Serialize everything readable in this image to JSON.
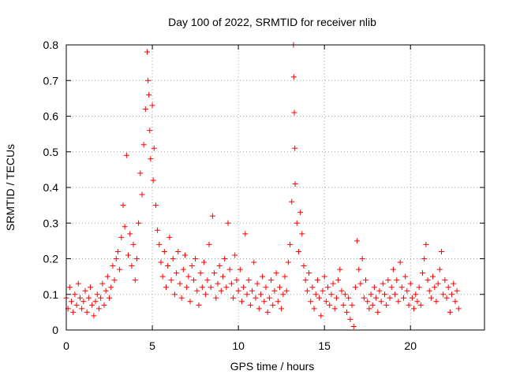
{
  "chart_data": {
    "type": "scatter",
    "title": "Day 100 of 2022, SRMTID for receiver nlib",
    "xlabel": "GPS time / hours",
    "ylabel": "SRMTID / TECUs",
    "xlim": [
      0,
      24.3
    ],
    "ylim": [
      0,
      0.8
    ],
    "xticks": [
      0,
      5,
      10,
      15,
      20
    ],
    "yticks": [
      0,
      0.1,
      0.2,
      0.3,
      0.4,
      0.5,
      0.6,
      0.7,
      0.8
    ],
    "xtick_labels": [
      "0",
      "5",
      "10",
      "15",
      "20"
    ],
    "ytick_labels": [
      "0",
      "0.1",
      "0.2",
      "0.3",
      "0.4",
      "0.5",
      "0.6",
      "0.7",
      "0.8"
    ],
    "grid": true,
    "marker": "+",
    "color": "#ff0000",
    "series": [
      {
        "name": "SRMTID",
        "points": [
          [
            0.0,
            0.09
          ],
          [
            0.1,
            0.06
          ],
          [
            0.2,
            0.12
          ],
          [
            0.3,
            0.08
          ],
          [
            0.4,
            0.05
          ],
          [
            0.5,
            0.1
          ],
          [
            0.6,
            0.07
          ],
          [
            0.7,
            0.13
          ],
          [
            0.8,
            0.09
          ],
          [
            0.9,
            0.06
          ],
          [
            1.0,
            0.08
          ],
          [
            1.1,
            0.11
          ],
          [
            1.2,
            0.05
          ],
          [
            1.3,
            0.09
          ],
          [
            1.4,
            0.12
          ],
          [
            1.5,
            0.07
          ],
          [
            1.6,
            0.04
          ],
          [
            1.7,
            0.08
          ],
          [
            1.8,
            0.1
          ],
          [
            1.9,
            0.06
          ],
          [
            2.0,
            0.09
          ],
          [
            2.1,
            0.13
          ],
          [
            2.2,
            0.07
          ],
          [
            2.3,
            0.11
          ],
          [
            2.4,
            0.15
          ],
          [
            2.5,
            0.09
          ],
          [
            2.6,
            0.12
          ],
          [
            2.7,
            0.18
          ],
          [
            2.8,
            0.14
          ],
          [
            2.9,
            0.2
          ],
          [
            3.0,
            0.22
          ],
          [
            3.1,
            0.17
          ],
          [
            3.2,
            0.26
          ],
          [
            3.3,
            0.35
          ],
          [
            3.4,
            0.29
          ],
          [
            3.5,
            0.49
          ],
          [
            3.6,
            0.21
          ],
          [
            3.7,
            0.27
          ],
          [
            3.8,
            0.18
          ],
          [
            3.9,
            0.24
          ],
          [
            4.0,
            0.14
          ],
          [
            4.1,
            0.2
          ],
          [
            4.2,
            0.3
          ],
          [
            4.3,
            0.44
          ],
          [
            4.4,
            0.38
          ],
          [
            4.5,
            0.52
          ],
          [
            4.6,
            0.62
          ],
          [
            4.7,
            0.78
          ],
          [
            4.75,
            0.7
          ],
          [
            4.8,
            0.66
          ],
          [
            4.85,
            0.56
          ],
          [
            4.9,
            0.48
          ],
          [
            5.0,
            0.63
          ],
          [
            5.05,
            0.42
          ],
          [
            5.1,
            0.51
          ],
          [
            5.2,
            0.35
          ],
          [
            5.3,
            0.28
          ],
          [
            5.4,
            0.24
          ],
          [
            5.5,
            0.19
          ],
          [
            5.6,
            0.15
          ],
          [
            5.7,
            0.22
          ],
          [
            5.8,
            0.12
          ],
          [
            5.9,
            0.18
          ],
          [
            6.0,
            0.26
          ],
          [
            6.1,
            0.14
          ],
          [
            6.2,
            0.2
          ],
          [
            6.3,
            0.1
          ],
          [
            6.4,
            0.16
          ],
          [
            6.5,
            0.22
          ],
          [
            6.6,
            0.13
          ],
          [
            6.7,
            0.09
          ],
          [
            6.8,
            0.17
          ],
          [
            6.9,
            0.21
          ],
          [
            7.0,
            0.12
          ],
          [
            7.1,
            0.15
          ],
          [
            7.2,
            0.08
          ],
          [
            7.3,
            0.18
          ],
          [
            7.4,
            0.14
          ],
          [
            7.5,
            0.2
          ],
          [
            7.6,
            0.11
          ],
          [
            7.7,
            0.07
          ],
          [
            7.8,
            0.16
          ],
          [
            7.9,
            0.12
          ],
          [
            8.0,
            0.19
          ],
          [
            8.1,
            0.1
          ],
          [
            8.2,
            0.14
          ],
          [
            8.3,
            0.24
          ],
          [
            8.4,
            0.12
          ],
          [
            8.5,
            0.32
          ],
          [
            8.6,
            0.16
          ],
          [
            8.7,
            0.09
          ],
          [
            8.8,
            0.13
          ],
          [
            8.9,
            0.18
          ],
          [
            9.0,
            0.11
          ],
          [
            9.1,
            0.15
          ],
          [
            9.2,
            0.2
          ],
          [
            9.3,
            0.12
          ],
          [
            9.4,
            0.3
          ],
          [
            9.5,
            0.17
          ],
          [
            9.6,
            0.13
          ],
          [
            9.7,
            0.09
          ],
          [
            9.8,
            0.21
          ],
          [
            9.9,
            0.14
          ],
          [
            10.0,
            0.11
          ],
          [
            10.1,
            0.17
          ],
          [
            10.2,
            0.08
          ],
          [
            10.3,
            0.12
          ],
          [
            10.4,
            0.27
          ],
          [
            10.5,
            0.1
          ],
          [
            10.6,
            0.14
          ],
          [
            10.7,
            0.07
          ],
          [
            10.8,
            0.11
          ],
          [
            10.9,
            0.19
          ],
          [
            11.0,
            0.09
          ],
          [
            11.1,
            0.13
          ],
          [
            11.2,
            0.06
          ],
          [
            11.3,
            0.1
          ],
          [
            11.4,
            0.15
          ],
          [
            11.5,
            0.08
          ],
          [
            11.6,
            0.12
          ],
          [
            11.7,
            0.05
          ],
          [
            11.8,
            0.09
          ],
          [
            11.9,
            0.14
          ],
          [
            12.0,
            0.07
          ],
          [
            12.1,
            0.11
          ],
          [
            12.2,
            0.16
          ],
          [
            12.3,
            0.08
          ],
          [
            12.4,
            0.12
          ],
          [
            12.5,
            0.06
          ],
          [
            12.6,
            0.1
          ],
          [
            12.7,
            0.15
          ],
          [
            12.8,
            0.11
          ],
          [
            12.9,
            0.19
          ],
          [
            13.0,
            0.24
          ],
          [
            13.1,
            0.36
          ],
          [
            13.2,
            0.8
          ],
          [
            13.22,
            0.71
          ],
          [
            13.25,
            0.61
          ],
          [
            13.28,
            0.51
          ],
          [
            13.3,
            0.41
          ],
          [
            13.4,
            0.3
          ],
          [
            13.5,
            0.22
          ],
          [
            13.6,
            0.33
          ],
          [
            13.7,
            0.27
          ],
          [
            13.8,
            0.18
          ],
          [
            13.9,
            0.14
          ],
          [
            14.0,
            0.11
          ],
          [
            14.1,
            0.16
          ],
          [
            14.2,
            0.08
          ],
          [
            14.3,
            0.12
          ],
          [
            14.4,
            0.06
          ],
          [
            14.5,
            0.1
          ],
          [
            14.6,
            0.14
          ],
          [
            14.7,
            0.09
          ],
          [
            14.8,
            0.04
          ],
          [
            14.9,
            0.11
          ],
          [
            15.0,
            0.15
          ],
          [
            15.1,
            0.08
          ],
          [
            15.2,
            0.12
          ],
          [
            15.3,
            0.07
          ],
          [
            15.4,
            0.1
          ],
          [
            15.5,
            0.13
          ],
          [
            15.6,
            0.06
          ],
          [
            15.7,
            0.09
          ],
          [
            15.8,
            0.14
          ],
          [
            15.9,
            0.17
          ],
          [
            16.0,
            0.11
          ],
          [
            16.1,
            0.07
          ],
          [
            16.2,
            0.1
          ],
          [
            16.3,
            0.05
          ],
          [
            16.4,
            0.09
          ],
          [
            16.5,
            0.03
          ],
          [
            16.6,
            0.07
          ],
          [
            16.7,
            0.01
          ],
          [
            16.8,
            0.12
          ],
          [
            16.9,
            0.25
          ],
          [
            17.0,
            0.17
          ],
          [
            17.1,
            0.13
          ],
          [
            17.2,
            0.2
          ],
          [
            17.3,
            0.09
          ],
          [
            17.4,
            0.14
          ],
          [
            17.5,
            0.08
          ],
          [
            17.6,
            0.06
          ],
          [
            17.7,
            0.1
          ],
          [
            17.8,
            0.07
          ],
          [
            17.9,
            0.12
          ],
          [
            18.0,
            0.09
          ],
          [
            18.1,
            0.05
          ],
          [
            18.2,
            0.11
          ],
          [
            18.3,
            0.08
          ],
          [
            18.4,
            0.13
          ],
          [
            18.5,
            0.1
          ],
          [
            18.6,
            0.07
          ],
          [
            18.7,
            0.14
          ],
          [
            18.8,
            0.09
          ],
          [
            18.9,
            0.12
          ],
          [
            19.0,
            0.17
          ],
          [
            19.1,
            0.1
          ],
          [
            19.2,
            0.14
          ],
          [
            19.3,
            0.08
          ],
          [
            19.4,
            0.19
          ],
          [
            19.5,
            0.12
          ],
          [
            19.6,
            0.09
          ],
          [
            19.7,
            0.15
          ],
          [
            19.8,
            0.11
          ],
          [
            19.9,
            0.07
          ],
          [
            20.0,
            0.13
          ],
          [
            20.1,
            0.09
          ],
          [
            20.2,
            0.06
          ],
          [
            20.3,
            0.1
          ],
          [
            20.4,
            0.08
          ],
          [
            20.5,
            0.12
          ],
          [
            20.6,
            0.07
          ],
          [
            20.7,
            0.16
          ],
          [
            20.8,
            0.2
          ],
          [
            20.9,
            0.24
          ],
          [
            21.0,
            0.14
          ],
          [
            21.1,
            0.11
          ],
          [
            21.2,
            0.09
          ],
          [
            21.3,
            0.15
          ],
          [
            21.4,
            0.12
          ],
          [
            21.5,
            0.08
          ],
          [
            21.6,
            0.13
          ],
          [
            21.7,
            0.17
          ],
          [
            21.8,
            0.22
          ],
          [
            21.9,
            0.1
          ],
          [
            22.0,
            0.14
          ],
          [
            22.1,
            0.09
          ],
          [
            22.2,
            0.12
          ],
          [
            22.3,
            0.05
          ],
          [
            22.4,
            0.1
          ],
          [
            22.5,
            0.13
          ],
          [
            22.6,
            0.08
          ],
          [
            22.7,
            0.11
          ],
          [
            22.8,
            0.06
          ]
        ]
      }
    ]
  }
}
